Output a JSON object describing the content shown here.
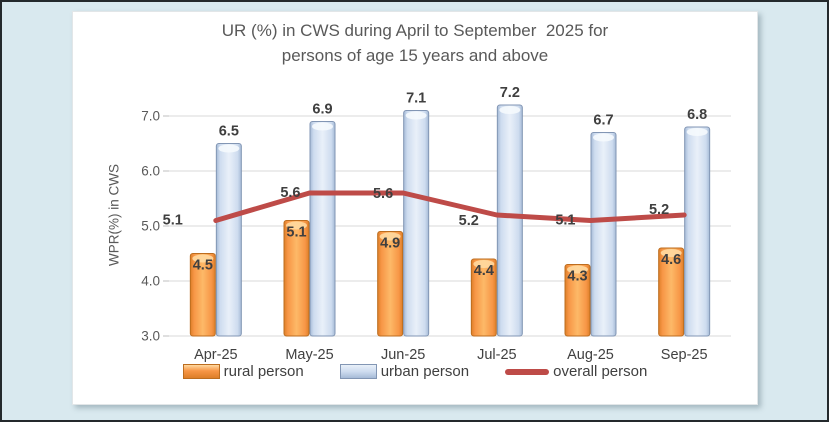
{
  "window": {
    "background_color": "#D9E9EF",
    "frame_border_color": "#24292C",
    "panel_background": "#FFFFFF"
  },
  "chart_data": {
    "type": "bar",
    "title": "UR (%) in CWS during April to September  2025 for\npersons of age 15 years and above",
    "ylabel": "WPR(%) in CWS",
    "xlabel": "",
    "categories": [
      "Apr-25",
      "May-25",
      "Jun-25",
      "Jul-25",
      "Aug-25",
      "Sep-25"
    ],
    "series": [
      {
        "name": "rural person",
        "type": "bar",
        "values": [
          4.5,
          5.1,
          4.9,
          4.4,
          4.3,
          4.6
        ],
        "color": "#F79646",
        "color_light": "#FDB968",
        "color_dark": "#DD7E28",
        "color_cap": "#FFD9A0",
        "border": "#BC6D1F",
        "label_position": "inside-top"
      },
      {
        "name": "urban person",
        "type": "bar",
        "values": [
          6.5,
          6.9,
          7.1,
          7.2,
          6.7,
          6.8
        ],
        "color": "#CEDCEF",
        "color_light": "#E9F0F9",
        "color_dark": "#A6BBD7",
        "color_cap": "#F5F9FD",
        "border": "#8296B4",
        "label_position": "above"
      },
      {
        "name": "overall person",
        "type": "line",
        "values": [
          5.1,
          5.6,
          5.6,
          5.2,
          5.1,
          5.2
        ],
        "color": "#BE4B48",
        "label_position": "left"
      }
    ],
    "ylim": [
      3.0,
      7.5
    ],
    "yticks": [
      "3.0",
      "4.0",
      "5.0",
      "6.0",
      "7.0"
    ],
    "grid": true,
    "legend_position": "bottom",
    "data_label_color": "#3F3F3F",
    "axis_text_color": "#595959",
    "category_text_color": "#404040",
    "gridline_color": "#D9D9D9",
    "axis_line_color": "#BFBFBF"
  }
}
